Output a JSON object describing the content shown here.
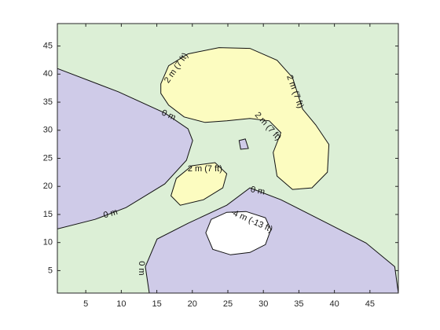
{
  "chart_data": {
    "type": "contour",
    "xlim": [
      1,
      49
    ],
    "ylim": [
      1,
      49
    ],
    "xticks": [
      5,
      10,
      15,
      20,
      25,
      30,
      35,
      40,
      45
    ],
    "yticks": [
      5,
      10,
      15,
      20,
      25,
      30,
      35,
      40,
      45
    ],
    "background": "#dcefd6",
    "levels": [
      {
        "value": 0,
        "label": "0 m"
      },
      {
        "value": 2,
        "label": "2 m (7 ft)"
      },
      {
        "value": -4,
        "label": "-4 m (-13 ft)"
      }
    ],
    "regions": [
      {
        "color": "#cfcbe8",
        "x": [
          1,
          9.58,
          16.12,
          19.39,
          20.04,
          19.17,
          16.12,
          10.67,
          6.31,
          1
        ],
        "y": [
          41,
          36.86,
          33.07,
          30.26,
          28.16,
          24.65,
          20.44,
          16.23,
          14.12,
          12.44
        ]
      },
      {
        "color": "#cfcbe8",
        "x": [
          13.94,
          13.39,
          15.03,
          19.39,
          24.84,
          28.11,
          32.47,
          39.01,
          44.45,
          48.49,
          49
        ],
        "y": [
          1,
          5.7,
          10.61,
          13.42,
          16.65,
          19.74,
          17.63,
          13.42,
          9.91,
          5.7,
          1
        ]
      },
      {
        "color": "#ffffff",
        "x": [
          21.89,
          22.66,
          24.84,
          27.56,
          30.29,
          31.05,
          30.29,
          28.11,
          25.38,
          22.88
        ],
        "y": [
          11.74,
          14.12,
          15.39,
          15.53,
          14.4,
          12.3,
          9.63,
          8.23,
          7.81,
          8.79
        ]
      },
      {
        "color": "#fcfcc0",
        "x": [
          15.57,
          16.66,
          19.39,
          23.75,
          28.11,
          31.92,
          34.1,
          35.52,
          37.37,
          39.22,
          39.01,
          36.83,
          34.1,
          31.92,
          31.38,
          32.47,
          30.83,
          28.11,
          24.84,
          21.78,
          18.84,
          16.66,
          15.57
        ],
        "y": [
          38.26,
          41.49,
          43.6,
          44.72,
          44.58,
          42.47,
          39.39,
          33.77,
          30.96,
          27.46,
          22.54,
          19.74,
          19.46,
          21.84,
          26.05,
          29.56,
          31.67,
          32.09,
          31.67,
          31.39,
          32.37,
          34.47,
          36.58
        ]
      },
      {
        "color": "#fcfcc0",
        "x": [
          16.99,
          17.75,
          19.93,
          23.2,
          24.84,
          24.29,
          21.57,
          18.3
        ],
        "y": [
          18.33,
          21.42,
          23.67,
          24.23,
          22.26,
          19.74,
          17.63,
          16.65
        ]
      },
      {
        "color": "#cfcbe8",
        "x": [
          26.58,
          27.45,
          27.89,
          26.8
        ],
        "y": [
          28.16,
          28.44,
          26.75,
          26.61
        ]
      }
    ],
    "contour_labels": [
      {
        "level": 0,
        "x": 16.66,
        "y": 32.65
      },
      {
        "level": 0,
        "x": 8.49,
        "y": 15.11
      },
      {
        "level": 0,
        "x": 29.2,
        "y": 19.18
      },
      {
        "level": 0,
        "x": 12.85,
        "y": 5.42
      },
      {
        "level": 1,
        "x": 17.75,
        "y": 41.07
      },
      {
        "level": 1,
        "x": 34.43,
        "y": 36.86
      },
      {
        "level": 1,
        "x": 30.61,
        "y": 30.68
      },
      {
        "level": 1,
        "x": 21.78,
        "y": 23.11
      },
      {
        "level": 2,
        "x": 28.32,
        "y": 13.84
      }
    ]
  }
}
